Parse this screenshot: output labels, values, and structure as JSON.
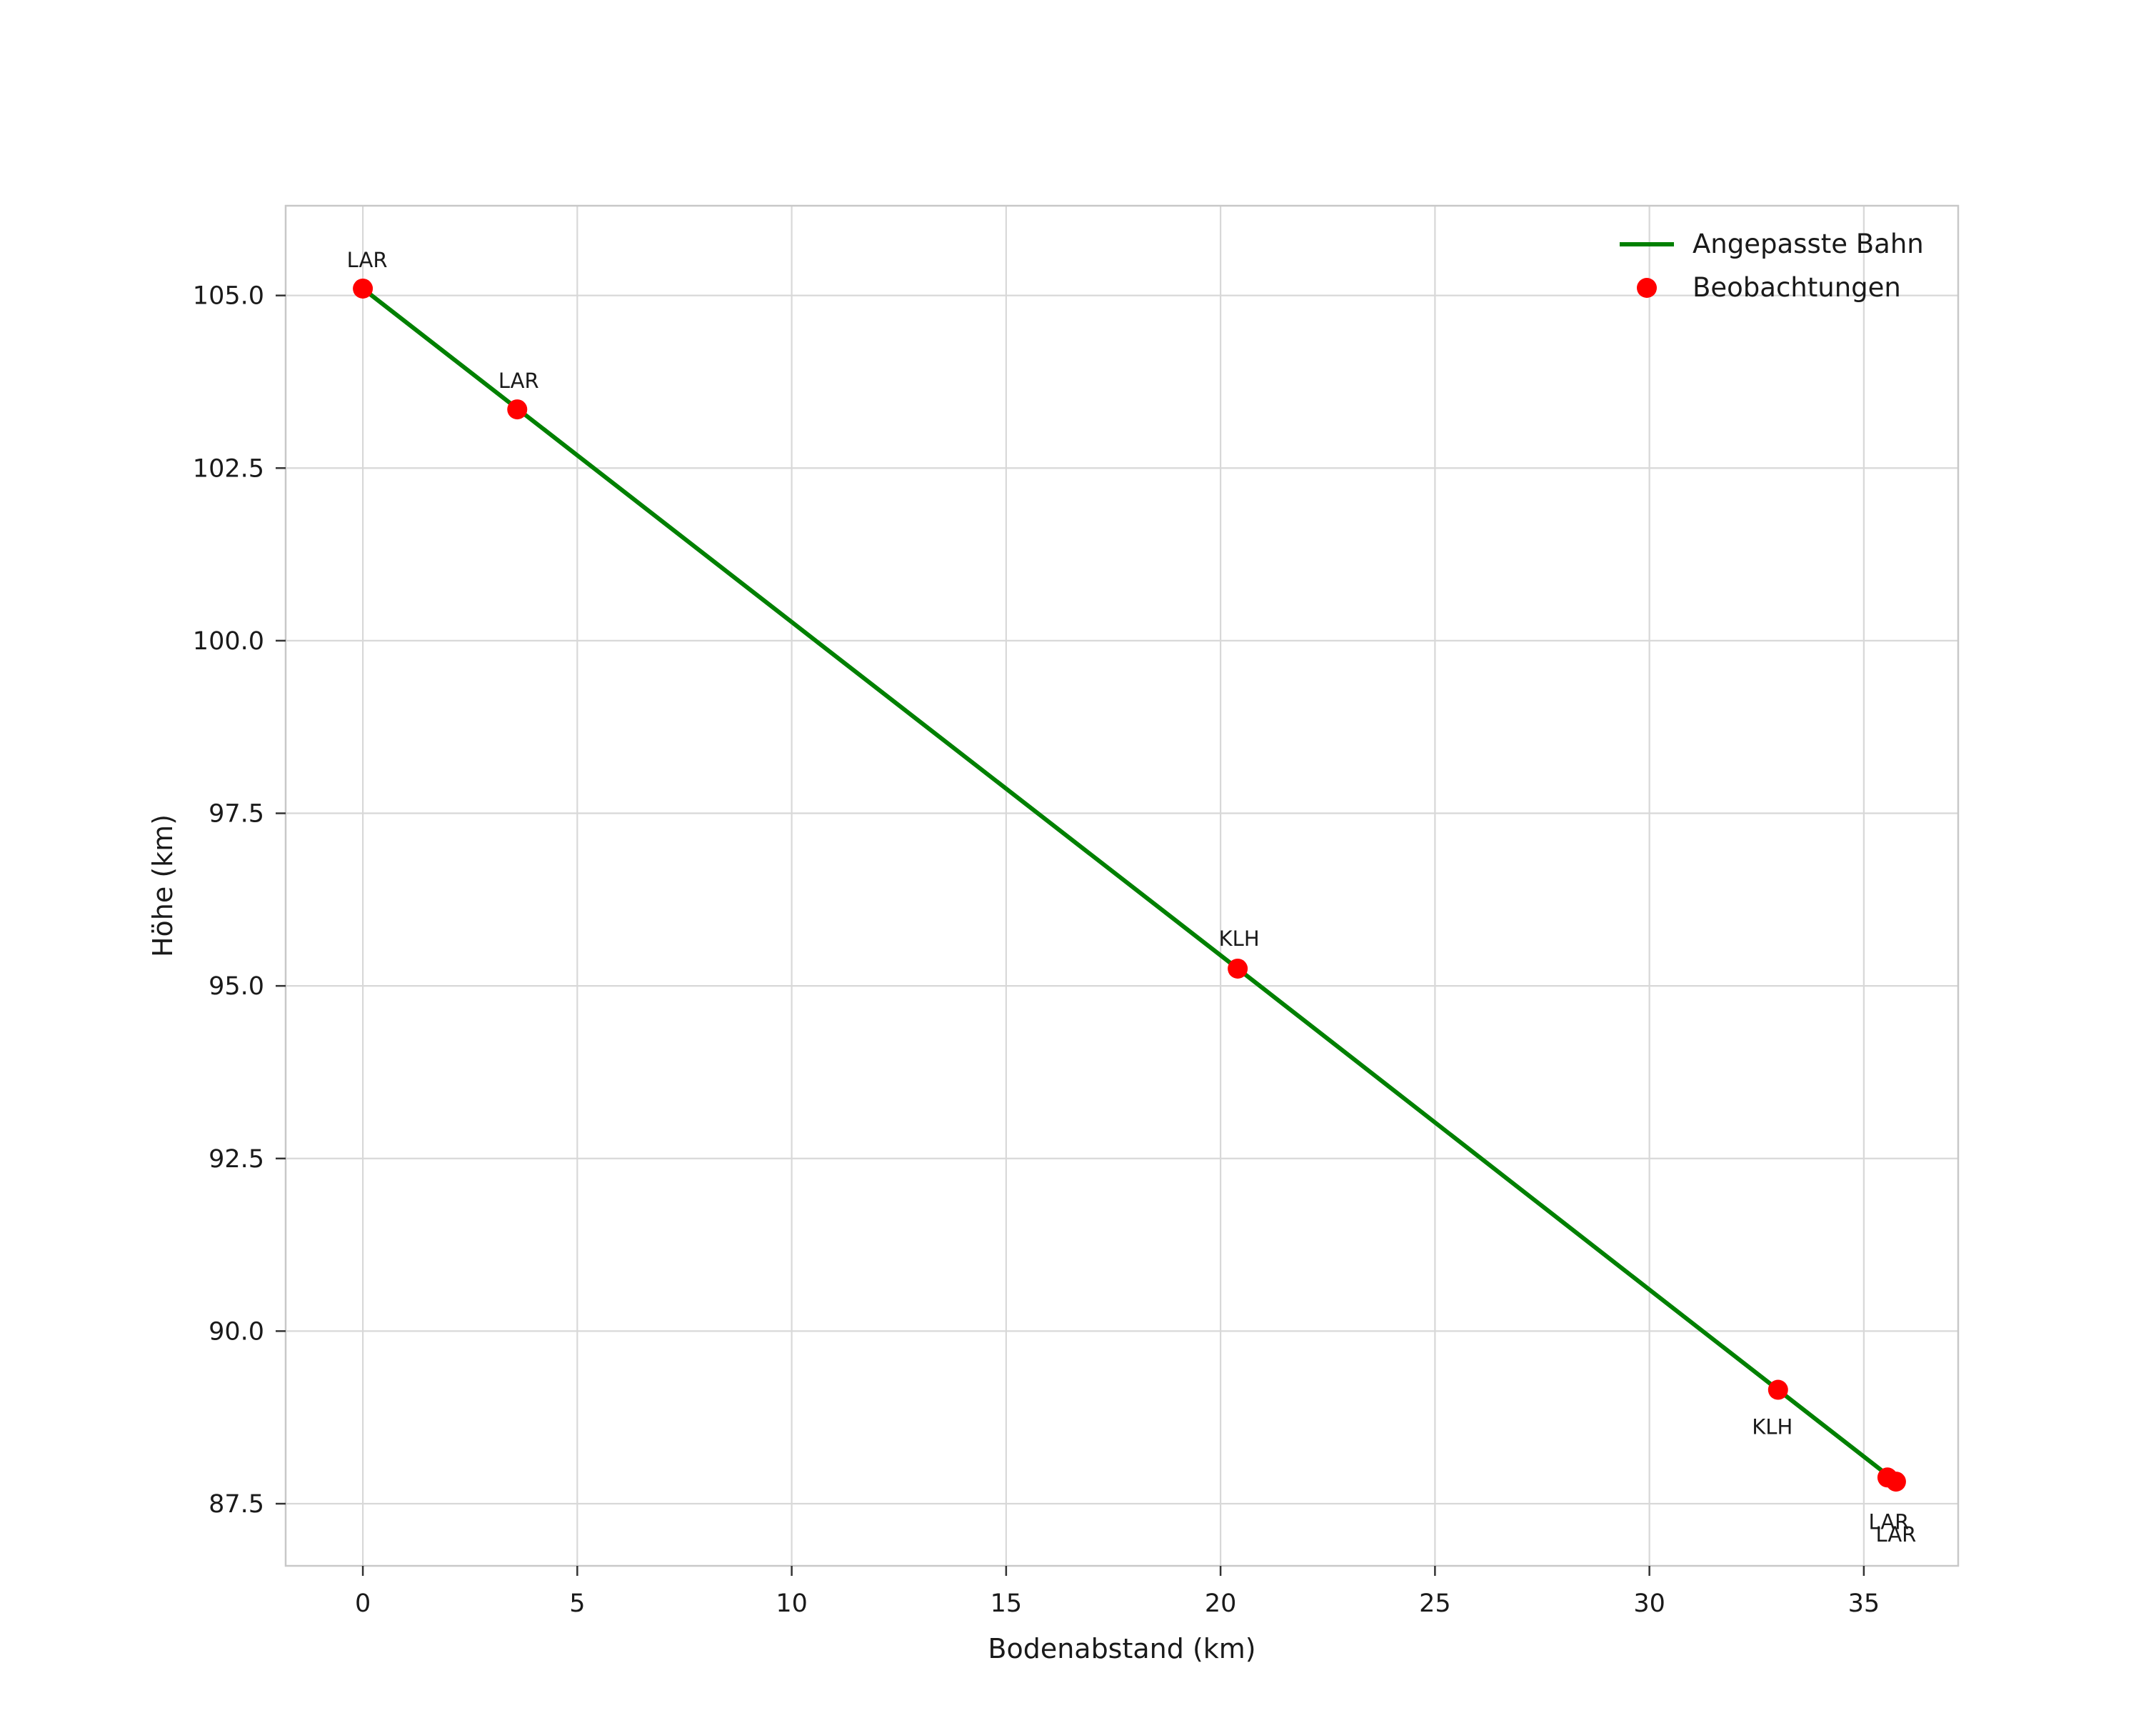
{
  "chart_data": {
    "type": "line+scatter",
    "title": "",
    "xlabel": "Bodenabstand (km)",
    "ylabel": "Höhe (km)",
    "xlim": [
      -1.8,
      37.2
    ],
    "ylim": [
      86.6,
      106.3
    ],
    "xticks": [
      0,
      5,
      10,
      15,
      20,
      25,
      30,
      35
    ],
    "yticks": [
      87.5,
      90.0,
      92.5,
      95.0,
      97.5,
      100.0,
      102.5,
      105.0
    ],
    "grid": true,
    "colors": {
      "line": "#008000",
      "points": "#ff0000",
      "grid": "#d8d8d8",
      "frame": "#c8c8c8",
      "tick": "#333333",
      "text": "#1a1a1a"
    },
    "legend": {
      "position": "upper right",
      "entries": [
        {
          "label": "Angepasste Bahn",
          "marker": "line",
          "color": "#008000"
        },
        {
          "label": "Beobachtungen",
          "marker": "point",
          "color": "#ff0000"
        }
      ]
    },
    "series": [
      {
        "name": "Angepasste Bahn",
        "type": "line",
        "color": "#008000",
        "points": [
          [
            0.0,
            105.1
          ],
          [
            10.0,
            100.27
          ],
          [
            20.4,
            95.25
          ],
          [
            30.0,
            90.6
          ],
          [
            35.75,
            87.82
          ]
        ]
      },
      {
        "name": "Beobachtungen",
        "type": "scatter",
        "color": "#ff0000",
        "points": [
          {
            "x": 0.0,
            "y": 105.1,
            "label": "LAR",
            "label_offset": [
              6,
              -30
            ]
          },
          {
            "x": 3.6,
            "y": 103.35,
            "label": "LAR",
            "label_offset": [
              2,
              -30
            ]
          },
          {
            "x": 20.4,
            "y": 95.25,
            "label": "KLH",
            "label_offset": [
              2,
              -32
            ]
          },
          {
            "x": 33.0,
            "y": 89.15,
            "label": "KLH",
            "label_offset": [
              -8,
              62
            ]
          },
          {
            "x": 35.55,
            "y": 87.88,
            "label": "LAR",
            "label_offset": [
              2,
              72
            ]
          },
          {
            "x": 35.75,
            "y": 87.82,
            "label": "LAR",
            "label_offset": [
              0,
              84
            ]
          }
        ]
      }
    ]
  }
}
